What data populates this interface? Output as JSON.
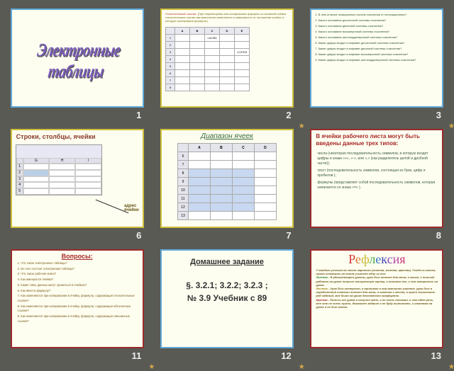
{
  "slides": {
    "s1": {
      "num": "1",
      "title": "Электронные таблицы"
    },
    "s2": {
      "num": "2",
      "heading_red": "Относительные ссылки.",
      "heading_rest": "(При перемещении или копировании формулы из активной ячейки относительные ссылки автоматически изменяются в зависимости от положения ячейки, в которую скопирована формула.)",
      "cols": [
        "A",
        "B",
        "C",
        "D",
        "E"
      ],
      "cells": {
        "c1": "=A1*B1",
        "e3": "=C3*D3"
      }
    },
    "s3": {
      "num": "3",
      "questions": [
        "1. В чем отличие позиционных систем счисления от непозиционных?",
        "2. Какого основание десятичной системы счисления?",
        "3. Какого основание двоичной системы счисления?",
        "4. Какого основание восьмеричной системы счисления?",
        "5. Какого основание шестнадцатеричной системы счисления?",
        "6. Какие цифры входят в алфавит десятичной системы счисления?",
        "7. Какие цифры входят в алфавит двоичной системы счисления?",
        "8. Какие цифры входят в алфавит восьмеричной системы счисления?",
        "9. Какие цифры входят в алфавит шестнадцатеричной системы счисления?"
      ]
    },
    "s6": {
      "num": "6",
      "title": "Строки, столбцы, ячейки",
      "cols": [
        "G",
        "H",
        "I"
      ],
      "label": "адрес\nячейки"
    },
    "s7": {
      "num": "7",
      "title": "Диапазон ячеек",
      "cols": [
        "A",
        "B",
        "C",
        "D"
      ]
    },
    "s8": {
      "num": "8",
      "title": "В ячейки рабочего листа могут быть введены данные трех типов:",
      "items": [
        "числа (некоторая последовательность символов, в которую входят цифры и знаки «+», «-», или «,» (как разделитель целой и дробной части));",
        "текст (последовательность символов, состоящая из букв, цифр и пробелов );",
        "формулы (представляет собой последовательность символов, которая начинается со знака «=» )."
      ]
    },
    "s11": {
      "num": "11",
      "title": "Вопросы:",
      "items": [
        "1. Что такое электронные таблицы?",
        "2. Из чего состоит электронная таблица?",
        "3. Что такое рабочая книга?",
        "4. Как именуются ячейки?",
        "5. Какие типы данных могут храниться в ячейках?",
        "6. Как ввести формулу?",
        "7. Как изменяются при копировании в ячейку, формула, содержащая относительные ссылки?",
        "8. Как изменяются при копировании в ячейку, формула, содержащая абсолютные ссылки?",
        "9. Как изменяются при копировании в ячейку, формула, содержащая смешанные ссылки?"
      ]
    },
    "s12": {
      "num": "12",
      "title": "Домашнее задание",
      "line1": "§. 3.2.1; 3.2.2; 3.2.3 ;",
      "line2": "№ 3.9 Учебник с 89"
    },
    "s13": {
      "num": "13",
      "title_chars": [
        "Р",
        "е",
        "ф",
        "л",
        "е",
        "к",
        "с",
        "и",
        "я"
      ],
      "intro": "У каждого ученика на столе карточки (зеленая, желтая, красная). Уходя из класса, нужно оставить на столе учителя одну из них:",
      "green_label": "Зеленая",
      "green": " - Я удовлетворен уроком, урок был полезен для меня, я много, с пользой работал на уроке получил заслуженную оценку, я понимал все, о чем говорилось на уроке.",
      "yellow_label": "Желтая",
      "yellow": " - Урок был интересен, я принимал в нем активное участие, урок был в определенной степени полезен для меня, я отвечал с места, я сумел выполнить ряд заданий, мне было на уроке достаточно комфортно.",
      "red_label": "Красная",
      "red": " - Пользы от урока я получил мало, я не очень понимал, о чем идет речь, мне это не очень нужно, домашнее задание я не буду выполнять, к ответам на уроке я не был готов."
    }
  }
}
